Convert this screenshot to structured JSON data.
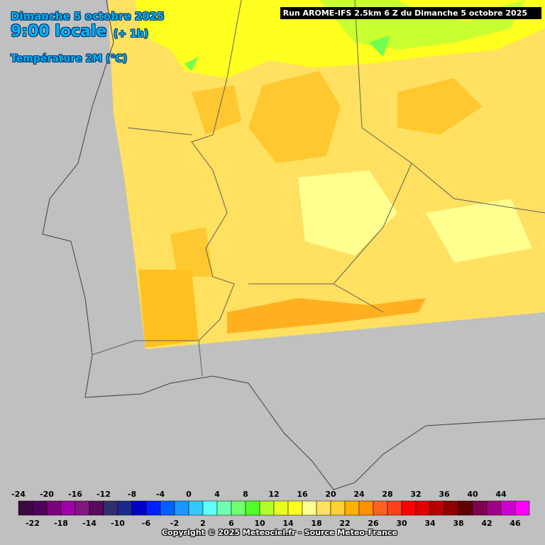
{
  "header": {
    "date": "Dimanche 5 octobre 2025",
    "time": "9:00 locale",
    "offset": "(+ 1h)",
    "variable": "Température 2M (°C)"
  },
  "run": "Run AROME-IFS 2.5km 6 Z du Dimanche 5 octobre 2025",
  "legend": {
    "labels": [
      -24,
      -22,
      -20,
      -18,
      -16,
      -14,
      -12,
      -10,
      -8,
      -6,
      -4,
      -2,
      0,
      2,
      4,
      6,
      8,
      10,
      12,
      14,
      16,
      18,
      20,
      22,
      24,
      26,
      28,
      30,
      32,
      34,
      36,
      38,
      40,
      42,
      44,
      46
    ],
    "colors": [
      "#3c0a40",
      "#50005a",
      "#7c007c",
      "#a000a8",
      "#801880",
      "#5a0a5a",
      "#303070",
      "#1c2890",
      "#0000c8",
      "#0020ff",
      "#0060ff",
      "#1898ff",
      "#30c8ff",
      "#60ffff",
      "#70ffb0",
      "#70ff70",
      "#50ff28",
      "#b0ff28",
      "#e8ff20",
      "#ffff20",
      "#ffff90",
      "#ffe060",
      "#ffd030",
      "#ffb000",
      "#ff9000",
      "#ff6020",
      "#ff4020",
      "#ff0000",
      "#e00000",
      "#b80000",
      "#900000",
      "#600000",
      "#800050",
      "#a00088",
      "#d000d0",
      "#ff00ff"
    ]
  },
  "copyright": "Copyright © 2025 Meteociel.fr - Source Meteo-France"
}
